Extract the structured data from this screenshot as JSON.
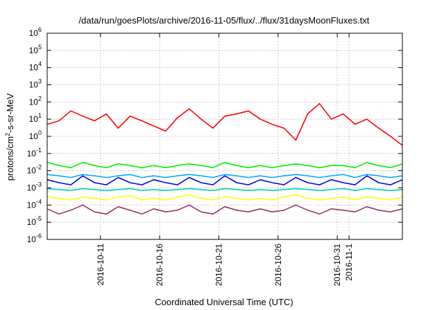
{
  "chart_data": {
    "type": "line",
    "title": "/data/run/goesPlots/archive/2016-11-05/flux/../flux/31daysMoonFluxes.txt",
    "xlabel": "Coordinated Universal Time (UTC)",
    "ylabel_main": "protons/cm",
    "ylabel_sup": "2",
    "ylabel_tail": "-s-sr-MeV",
    "yscale": "log",
    "ylim": [
      1e-06,
      1000000.0
    ],
    "xlim": [
      "2016-10-06T12:00",
      "2016-11-05T12:00"
    ],
    "grid": true,
    "legend": "none",
    "y_ticks": [
      {
        "base": "10",
        "exp": "-6",
        "value": 1e-06
      },
      {
        "base": "10",
        "exp": "-5",
        "value": 1e-05
      },
      {
        "base": "10",
        "exp": "-4",
        "value": 0.0001
      },
      {
        "base": "10",
        "exp": "-3",
        "value": 0.001
      },
      {
        "base": "10",
        "exp": "-2",
        "value": 0.01
      },
      {
        "base": "10",
        "exp": "-1",
        "value": 0.1
      },
      {
        "base": "10",
        "exp": "0",
        "value": 1
      },
      {
        "base": "10",
        "exp": "1",
        "value": 10
      },
      {
        "base": "10",
        "exp": "2",
        "value": 100
      },
      {
        "base": "10",
        "exp": "3",
        "value": 1000
      },
      {
        "base": "10",
        "exp": "4",
        "value": 10000
      },
      {
        "base": "10",
        "exp": "5",
        "value": 100000
      },
      {
        "base": "10",
        "exp": "6",
        "value": 1000000
      }
    ],
    "x_ticks": [
      {
        "label": "2016-10-11",
        "date": "2016-10-11"
      },
      {
        "label": "2016-10-16",
        "date": "2016-10-16"
      },
      {
        "label": "2016-10-21",
        "date": "2016-10-21"
      },
      {
        "label": "2016-10-26",
        "date": "2016-10-26"
      },
      {
        "label": "2016-10-31",
        "date": "2016-10-31"
      },
      {
        "label": "2016-11-1",
        "date": "2016-11-01"
      }
    ],
    "series": [
      {
        "color": "#ff0000",
        "x": [
          "2016-10-06T12:00",
          "2016-10-07T12:00",
          "2016-10-08T12:00",
          "2016-10-09T12:00",
          "2016-10-10T12:00",
          "2016-10-11T12:00",
          "2016-10-12T12:00",
          "2016-10-13T12:00",
          "2016-10-14T12:00",
          "2016-10-15T12:00",
          "2016-10-16T12:00",
          "2016-10-17T12:00",
          "2016-10-18T12:00",
          "2016-10-19T12:00",
          "2016-10-20T12:00",
          "2016-10-21T12:00",
          "2016-10-22T12:00",
          "2016-10-23T12:00",
          "2016-10-24T12:00",
          "2016-10-25T12:00",
          "2016-10-26T12:00",
          "2016-10-27T12:00",
          "2016-10-28T12:00",
          "2016-10-29T12:00",
          "2016-10-30T12:00",
          "2016-10-31T12:00",
          "2016-11-01T12:00",
          "2016-11-02T12:00",
          "2016-11-03T12:00",
          "2016-11-04T12:00",
          "2016-11-05T12:00"
        ],
        "y": [
          5,
          8,
          30,
          15,
          8,
          20,
          3,
          15,
          8,
          4,
          2,
          12,
          40,
          10,
          3,
          15,
          20,
          30,
          10,
          5,
          3,
          0.6,
          20,
          80,
          10,
          20,
          5,
          10,
          3,
          1,
          0.3
        ]
      },
      {
        "color": "#00ee00",
        "x": [
          "2016-10-06T12:00",
          "2016-10-07T12:00",
          "2016-10-08T12:00",
          "2016-10-09T12:00",
          "2016-10-10T12:00",
          "2016-10-11T12:00",
          "2016-10-12T12:00",
          "2016-10-13T12:00",
          "2016-10-14T12:00",
          "2016-10-15T12:00",
          "2016-10-16T12:00",
          "2016-10-17T12:00",
          "2016-10-18T12:00",
          "2016-10-19T12:00",
          "2016-10-20T12:00",
          "2016-10-21T12:00",
          "2016-10-22T12:00",
          "2016-10-23T12:00",
          "2016-10-24T12:00",
          "2016-10-25T12:00",
          "2016-10-26T12:00",
          "2016-10-27T12:00",
          "2016-10-28T12:00",
          "2016-10-29T12:00",
          "2016-10-30T12:00",
          "2016-10-31T12:00",
          "2016-11-01T12:00",
          "2016-11-02T12:00",
          "2016-11-03T12:00",
          "2016-11-04T12:00",
          "2016-11-05T12:00"
        ],
        "y": [
          0.03,
          0.02,
          0.015,
          0.03,
          0.02,
          0.015,
          0.025,
          0.02,
          0.015,
          0.02,
          0.015,
          0.02,
          0.025,
          0.02,
          0.015,
          0.03,
          0.02,
          0.015,
          0.02,
          0.015,
          0.02,
          0.025,
          0.02,
          0.015,
          0.02,
          0.02,
          0.015,
          0.03,
          0.02,
          0.015,
          0.025
        ]
      },
      {
        "color": "#00aaff",
        "x": [
          "2016-10-06T12:00",
          "2016-10-07T12:00",
          "2016-10-08T12:00",
          "2016-10-09T12:00",
          "2016-10-10T12:00",
          "2016-10-11T12:00",
          "2016-10-12T12:00",
          "2016-10-13T12:00",
          "2016-10-14T12:00",
          "2016-10-15T12:00",
          "2016-10-16T12:00",
          "2016-10-17T12:00",
          "2016-10-18T12:00",
          "2016-10-19T12:00",
          "2016-10-20T12:00",
          "2016-10-21T12:00",
          "2016-10-22T12:00",
          "2016-10-23T12:00",
          "2016-10-24T12:00",
          "2016-10-25T12:00",
          "2016-10-26T12:00",
          "2016-10-27T12:00",
          "2016-10-28T12:00",
          "2016-10-29T12:00",
          "2016-10-30T12:00",
          "2016-10-31T12:00",
          "2016-11-01T12:00",
          "2016-11-02T12:00",
          "2016-11-03T12:00",
          "2016-11-04T12:00",
          "2016-11-05T12:00"
        ],
        "y": [
          0.006,
          0.005,
          0.004,
          0.006,
          0.005,
          0.004,
          0.005,
          0.006,
          0.004,
          0.005,
          0.004,
          0.005,
          0.006,
          0.005,
          0.004,
          0.006,
          0.005,
          0.004,
          0.005,
          0.004,
          0.005,
          0.006,
          0.005,
          0.004,
          0.005,
          0.006,
          0.004,
          0.006,
          0.005,
          0.004,
          0.005
        ]
      },
      {
        "color": "#0000ee",
        "x": [
          "2016-10-06T12:00",
          "2016-10-07T12:00",
          "2016-10-08T12:00",
          "2016-10-09T12:00",
          "2016-10-10T12:00",
          "2016-10-11T12:00",
          "2016-10-12T12:00",
          "2016-10-13T12:00",
          "2016-10-14T12:00",
          "2016-10-15T12:00",
          "2016-10-16T12:00",
          "2016-10-17T12:00",
          "2016-10-18T12:00",
          "2016-10-19T12:00",
          "2016-10-20T12:00",
          "2016-10-21T12:00",
          "2016-10-22T12:00",
          "2016-10-23T12:00",
          "2016-10-24T12:00",
          "2016-10-25T12:00",
          "2016-10-26T12:00",
          "2016-10-27T12:00",
          "2016-10-28T12:00",
          "2016-10-29T12:00",
          "2016-10-30T12:00",
          "2016-10-31T12:00",
          "2016-11-01T12:00",
          "2016-11-02T12:00",
          "2016-11-03T12:00",
          "2016-11-04T12:00",
          "2016-11-05T12:00"
        ],
        "y": [
          0.003,
          0.002,
          0.0015,
          0.005,
          0.002,
          0.0015,
          0.004,
          0.002,
          0.0015,
          0.003,
          0.002,
          0.0015,
          0.004,
          0.002,
          0.0015,
          0.005,
          0.002,
          0.0015,
          0.003,
          0.002,
          0.0015,
          0.004,
          0.002,
          0.0015,
          0.003,
          0.002,
          0.0015,
          0.005,
          0.002,
          0.0015,
          0.003
        ]
      },
      {
        "color": "#00ccbb",
        "x": [
          "2016-10-06T12:00",
          "2016-10-07T12:00",
          "2016-10-08T12:00",
          "2016-10-09T12:00",
          "2016-10-10T12:00",
          "2016-10-11T12:00",
          "2016-10-12T12:00",
          "2016-10-13T12:00",
          "2016-10-14T12:00",
          "2016-10-15T12:00",
          "2016-10-16T12:00",
          "2016-10-17T12:00",
          "2016-10-18T12:00",
          "2016-10-19T12:00",
          "2016-10-20T12:00",
          "2016-10-21T12:00",
          "2016-10-22T12:00",
          "2016-10-23T12:00",
          "2016-10-24T12:00",
          "2016-10-25T12:00",
          "2016-10-26T12:00",
          "2016-10-27T12:00",
          "2016-10-28T12:00",
          "2016-10-29T12:00",
          "2016-10-30T12:00",
          "2016-10-31T12:00",
          "2016-11-01T12:00",
          "2016-11-02T12:00",
          "2016-11-03T12:00",
          "2016-11-04T12:00",
          "2016-11-05T12:00"
        ],
        "y": [
          0.0009,
          0.0008,
          0.0007,
          0.0009,
          0.0008,
          0.0007,
          0.0008,
          0.0009,
          0.0007,
          0.0008,
          0.0007,
          0.0008,
          0.0009,
          0.0008,
          0.0007,
          0.0009,
          0.0008,
          0.0007,
          0.0008,
          0.0007,
          0.0008,
          0.0009,
          0.0008,
          0.0007,
          0.0008,
          0.0009,
          0.0007,
          0.0009,
          0.0008,
          0.0007,
          0.0008
        ]
      },
      {
        "color": "#ffff00",
        "x": [
          "2016-10-06T12:00",
          "2016-10-07T12:00",
          "2016-10-08T12:00",
          "2016-10-09T12:00",
          "2016-10-10T12:00",
          "2016-10-11T12:00",
          "2016-10-12T12:00",
          "2016-10-13T12:00",
          "2016-10-14T12:00",
          "2016-10-15T12:00",
          "2016-10-16T12:00",
          "2016-10-17T12:00",
          "2016-10-18T12:00",
          "2016-10-19T12:00",
          "2016-10-20T12:00",
          "2016-10-21T12:00",
          "2016-10-22T12:00",
          "2016-10-23T12:00",
          "2016-10-24T12:00",
          "2016-10-25T12:00",
          "2016-10-26T12:00",
          "2016-10-27T12:00",
          "2016-10-28T12:00",
          "2016-10-29T12:00",
          "2016-10-30T12:00",
          "2016-10-31T12:00",
          "2016-11-01T12:00",
          "2016-11-02T12:00",
          "2016-11-03T12:00",
          "2016-11-04T12:00",
          "2016-11-05T12:00"
        ],
        "y": [
          0.0003,
          0.00025,
          0.0002,
          0.0003,
          0.00025,
          0.0002,
          0.0003,
          0.00035,
          0.0002,
          0.00025,
          0.0002,
          0.0003,
          0.0004,
          0.00025,
          0.0002,
          0.0003,
          0.00025,
          0.0002,
          0.00025,
          0.0002,
          0.0003,
          0.0004,
          0.00025,
          0.0002,
          0.00025,
          0.0003,
          0.0002,
          0.0003,
          0.00025,
          0.0002,
          0.0003
        ]
      },
      {
        "color": "#993366",
        "x": [
          "2016-10-06T12:00",
          "2016-10-07T12:00",
          "2016-10-08T12:00",
          "2016-10-09T12:00",
          "2016-10-10T12:00",
          "2016-10-11T12:00",
          "2016-10-12T12:00",
          "2016-10-13T12:00",
          "2016-10-14T12:00",
          "2016-10-15T12:00",
          "2016-10-16T12:00",
          "2016-10-17T12:00",
          "2016-10-18T12:00",
          "2016-10-19T12:00",
          "2016-10-20T12:00",
          "2016-10-21T12:00",
          "2016-10-22T12:00",
          "2016-10-23T12:00",
          "2016-10-24T12:00",
          "2016-10-25T12:00",
          "2016-10-26T12:00",
          "2016-10-27T12:00",
          "2016-10-28T12:00",
          "2016-10-29T12:00",
          "2016-10-30T12:00",
          "2016-10-31T12:00",
          "2016-11-01T12:00",
          "2016-11-02T12:00",
          "2016-11-03T12:00",
          "2016-11-04T12:00",
          "2016-11-05T12:00"
        ],
        "y": [
          6e-05,
          3e-05,
          5e-05,
          0.0001,
          4e-05,
          3e-05,
          8e-05,
          5e-05,
          3e-05,
          6e-05,
          4e-05,
          5e-05,
          0.0001,
          4e-05,
          3e-05,
          8e-05,
          5e-05,
          4e-05,
          6e-05,
          4e-05,
          5e-05,
          0.0001,
          5e-05,
          3e-05,
          6e-05,
          5e-05,
          4e-05,
          8e-05,
          5e-05,
          4e-05,
          6e-05
        ]
      }
    ]
  }
}
